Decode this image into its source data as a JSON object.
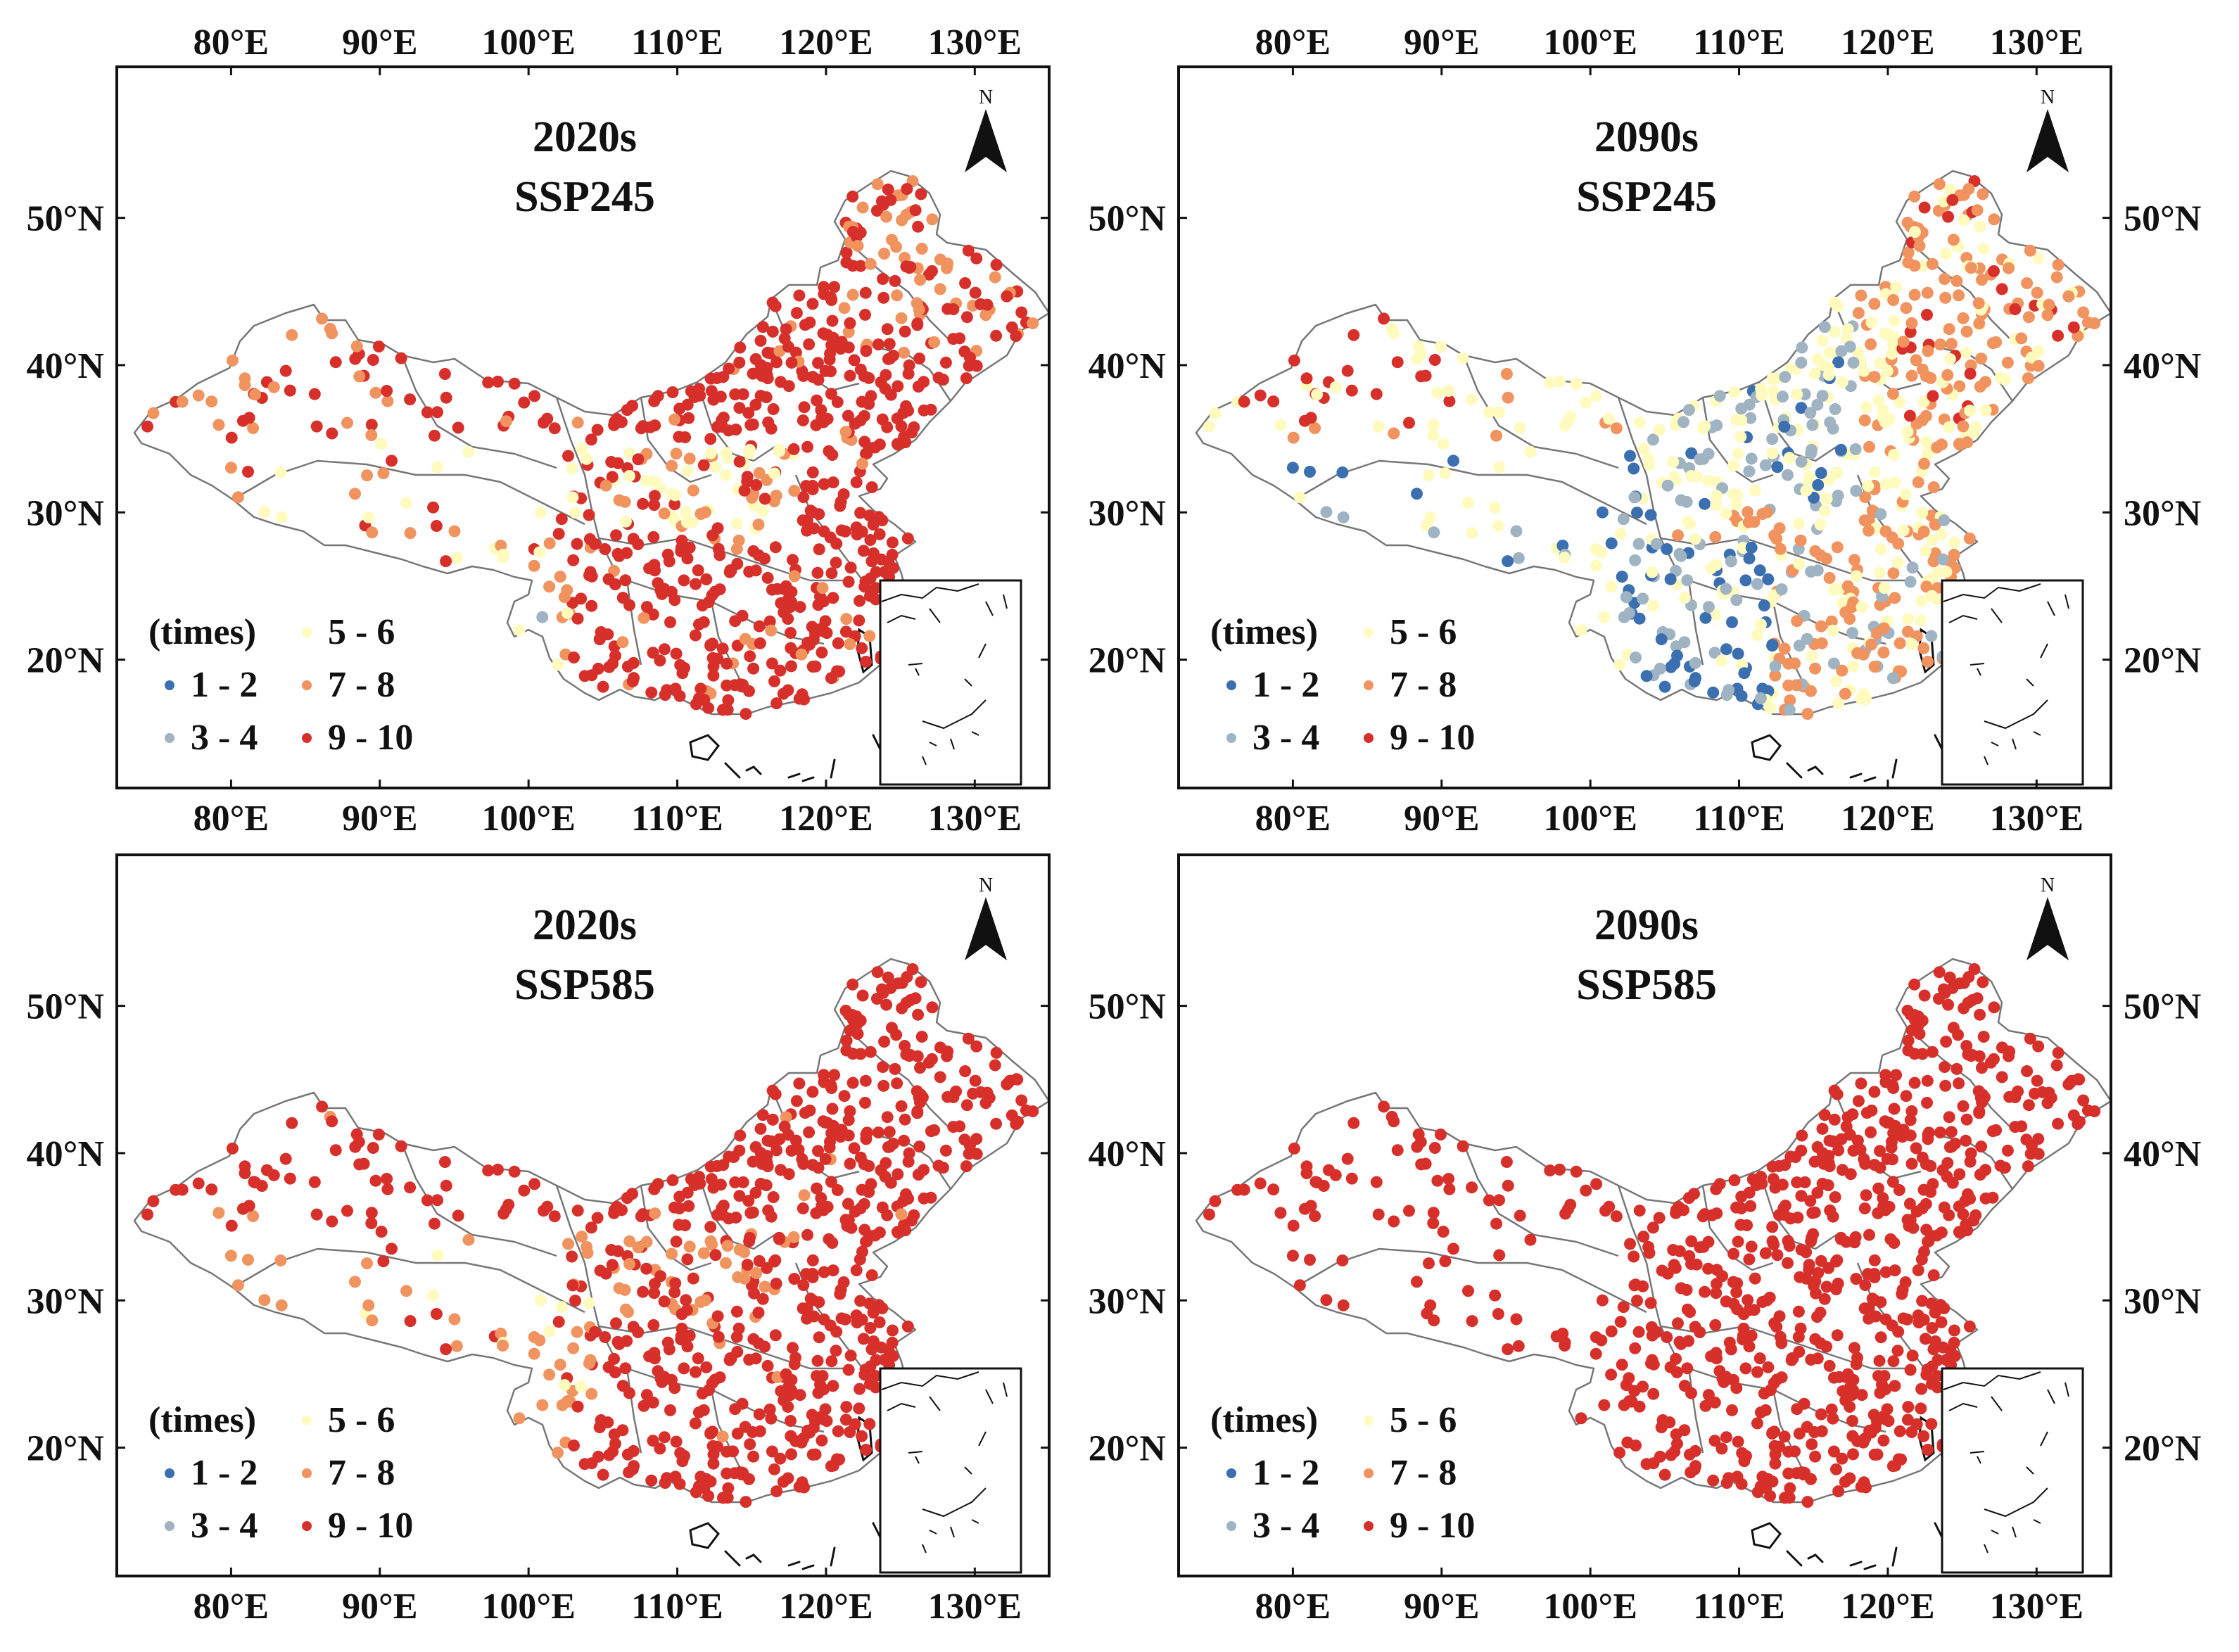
{
  "figure": {
    "lon_labels": [
      "80°E",
      "90°E",
      "100°E",
      "110°E",
      "120°E",
      "130°E"
    ],
    "lat_labels": [
      "50°N",
      "40°N",
      "30°N",
      "20°N"
    ],
    "north_label": "N",
    "legend": {
      "title": "(times)",
      "classes": [
        {
          "label": "1 - 2",
          "color": "#3b6fb0"
        },
        {
          "label": "3 - 4",
          "color": "#9fb3c2"
        },
        {
          "label": "5 - 6",
          "color": "#fffbbf"
        },
        {
          "label": "7 - 8",
          "color": "#f0935e"
        },
        {
          "label": "9 - 10",
          "color": "#d7302b"
        }
      ]
    }
  },
  "panels": [
    {
      "period": "2020s",
      "scenario": "SSP245",
      "dominant_class": "9 - 10",
      "class_mix": {
        "1 - 2": 0,
        "3 - 4": 2,
        "5 - 6": 12,
        "7 - 8": 26,
        "9 - 10": 60
      }
    },
    {
      "period": "2090s",
      "scenario": "SSP245",
      "dominant_class": "5 - 6",
      "class_mix": {
        "1 - 2": 8,
        "3 - 4": 20,
        "5 - 6": 40,
        "7 - 8": 28,
        "9 - 10": 4
      }
    },
    {
      "period": "2020s",
      "scenario": "SSP585",
      "dominant_class": "9 - 10",
      "class_mix": {
        "1 - 2": 0,
        "3 - 4": 1,
        "5 - 6": 5,
        "7 - 8": 14,
        "9 - 10": 80
      }
    },
    {
      "period": "2090s",
      "scenario": "SSP585",
      "dominant_class": "9 - 10",
      "class_mix": {
        "1 - 2": 0,
        "3 - 4": 0,
        "5 - 6": 0,
        "7 - 8": 0,
        "9 - 10": 100
      }
    }
  ]
}
